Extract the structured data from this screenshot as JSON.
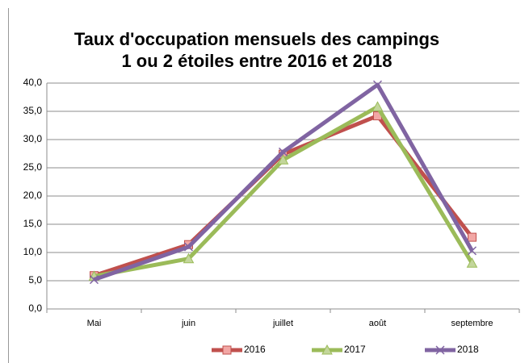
{
  "chart_data": {
    "type": "line",
    "title": "Taux d'occupation mensuels des campings",
    "subtitle": "1 ou 2 étoiles entre 2016 et 2018",
    "categories": [
      "Mai",
      "juin",
      "juillet",
      "août",
      "septembre"
    ],
    "series": [
      {
        "name": "2016",
        "color": "#c0504d",
        "marker": "square",
        "values": [
          5.9,
          11.4,
          27.4,
          34.2,
          12.7
        ]
      },
      {
        "name": "2017",
        "color": "#9bbb59",
        "marker": "triangle",
        "values": [
          5.8,
          8.9,
          26.4,
          35.8,
          8.1
        ]
      },
      {
        "name": "2018",
        "color": "#8064a2",
        "marker": "x",
        "values": [
          5.2,
          11.0,
          27.8,
          39.7,
          10.3
        ]
      }
    ],
    "ylim": [
      0,
      40
    ],
    "yticks": [
      {
        "value": 0,
        "label": "0,0"
      },
      {
        "value": 5,
        "label": "5,0"
      },
      {
        "value": 10,
        "label": "10,0"
      },
      {
        "value": 15,
        "label": "15,0"
      },
      {
        "value": 20,
        "label": "20,0"
      },
      {
        "value": 25,
        "label": "25,0"
      },
      {
        "value": 30,
        "label": "30,0"
      },
      {
        "value": 35,
        "label": "35,0"
      },
      {
        "value": 40,
        "label": "40,0"
      }
    ],
    "grid": true,
    "legend": "bottom"
  }
}
